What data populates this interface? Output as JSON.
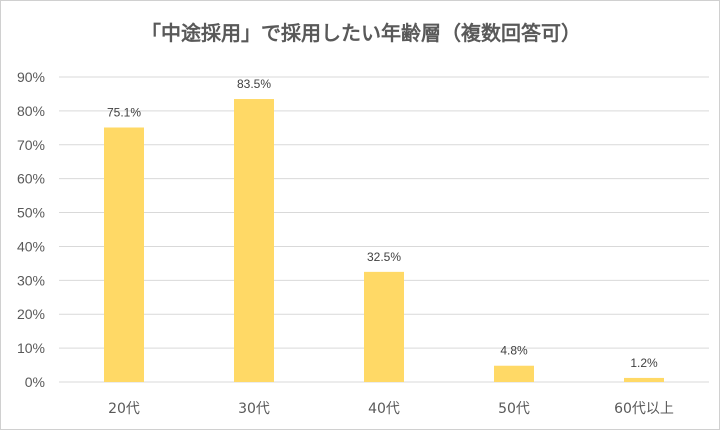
{
  "chart_data": {
    "type": "bar",
    "title": "「中途採用」で採用したい年齢層（複数回答可）",
    "categories": [
      "20代",
      "30代",
      "40代",
      "50代",
      "60代以上"
    ],
    "values": [
      75.1,
      83.5,
      32.5,
      4.8,
      1.2
    ],
    "data_labels": [
      "75.1%",
      "83.5%",
      "32.5%",
      "4.8%",
      "1.2%"
    ],
    "y_ticks": [
      "0%",
      "10%",
      "20%",
      "30%",
      "40%",
      "50%",
      "60%",
      "70%",
      "80%",
      "90%"
    ],
    "ylim": [
      0,
      90
    ],
    "y_unit": "%",
    "grid": true,
    "legend": "none",
    "bar_color": "#FFD966",
    "grid_color": "#d9d9d9",
    "text_color": "#595959"
  }
}
